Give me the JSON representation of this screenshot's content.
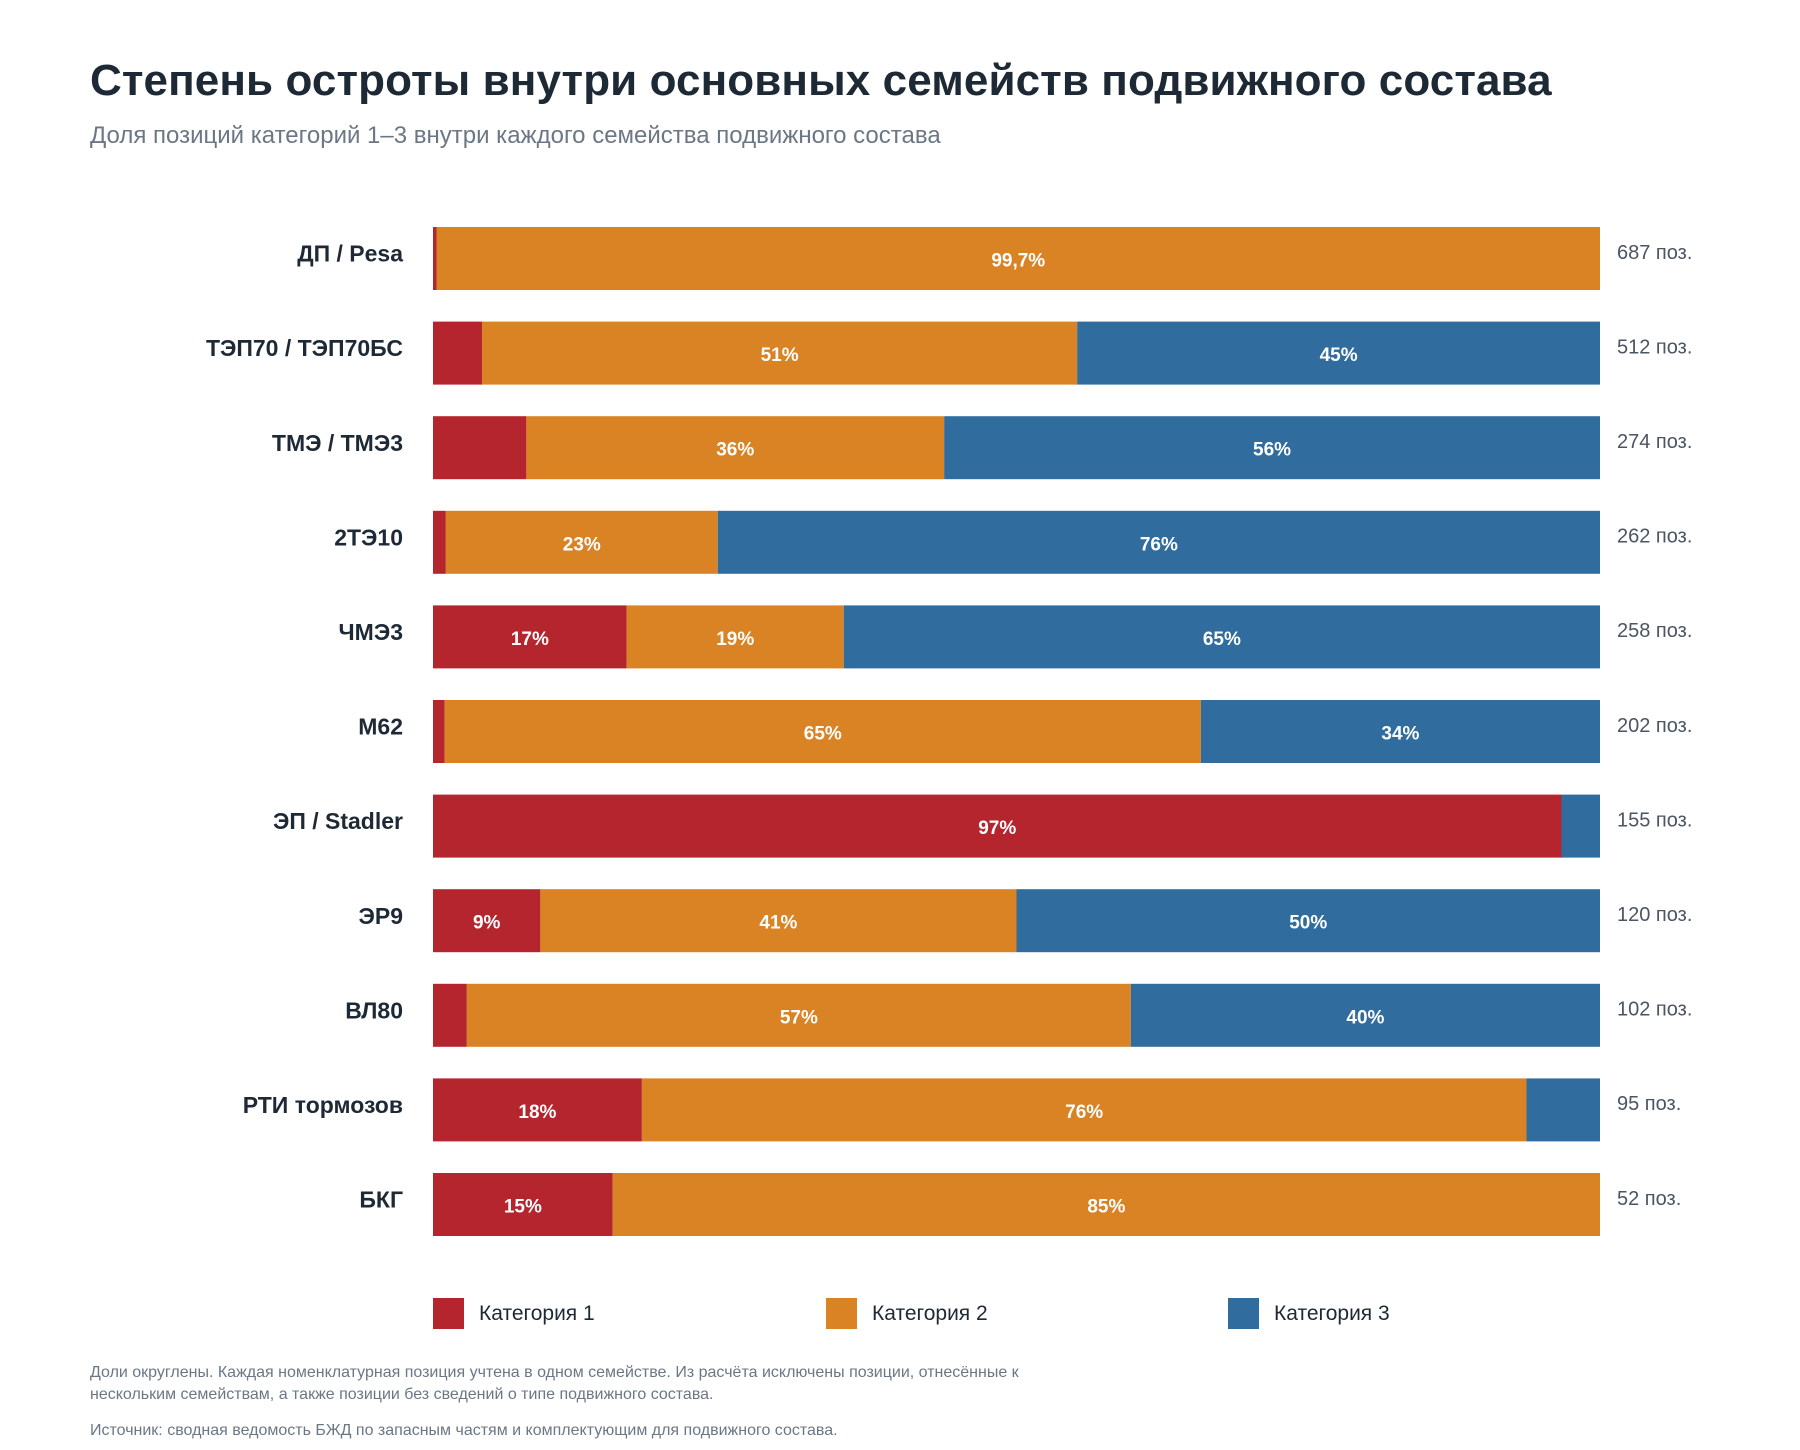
{
  "title": "Степень остроты внутри основных семейств подвижного состава",
  "subtitle": "Доля позиций категорий 1–3 внутри каждого семейства подвижного состава",
  "colors": {
    "cat1": "#b5252e",
    "cat2": "#d98325",
    "cat3": "#306d9e"
  },
  "chart_data": {
    "type": "bar",
    "orientation": "horizontal",
    "stacked": true,
    "normalized": true,
    "xlim": [
      0,
      100
    ],
    "series_names": [
      "Категория 1",
      "Категория 2",
      "Категория 3"
    ],
    "rows": [
      {
        "name": "ДП / Pesa",
        "count_label": "687 поз.",
        "values": [
          0.3,
          99.7,
          0
        ],
        "labels": [
          "",
          "99,7%",
          ""
        ]
      },
      {
        "name": "ТЭП70 / ТЭП70БС",
        "count_label": "512 поз.",
        "values": [
          4.2,
          51,
          44.8
        ],
        "labels": [
          "",
          "51%",
          "45%"
        ]
      },
      {
        "name": "ТМЭ / ТМЭ3",
        "count_label": "274 поз.",
        "values": [
          8,
          35.8,
          56.2
        ],
        "labels": [
          "",
          "36%",
          "56%"
        ]
      },
      {
        "name": "2ТЭ10",
        "count_label": "262 поз.",
        "values": [
          1.1,
          23.3,
          75.6
        ],
        "labels": [
          "",
          "23%",
          "76%"
        ]
      },
      {
        "name": "ЧМЭ3",
        "count_label": "258 поз.",
        "values": [
          16.6,
          18.6,
          64.8
        ],
        "labels": [
          "17%",
          "19%",
          "65%"
        ]
      },
      {
        "name": "М62",
        "count_label": "202 поз.",
        "values": [
          1,
          64.8,
          34.2
        ],
        "labels": [
          "",
          "65%",
          "34%"
        ]
      },
      {
        "name": "ЭП / Stadler",
        "count_label": "155 поз.",
        "values": [
          96.7,
          0,
          3.3
        ],
        "labels": [
          "97%",
          "",
          ""
        ]
      },
      {
        "name": "ЭР9",
        "count_label": "120 поз.",
        "values": [
          9.2,
          40.8,
          50
        ],
        "labels": [
          "9%",
          "41%",
          "50%"
        ]
      },
      {
        "name": "ВЛ80",
        "count_label": "102 поз.",
        "values": [
          2.9,
          56.9,
          40.2
        ],
        "labels": [
          "",
          "57%",
          "40%"
        ]
      },
      {
        "name": "РТИ тормозов",
        "count_label": "95 поз.",
        "values": [
          17.9,
          75.8,
          6.3
        ],
        "labels": [
          "18%",
          "76%",
          ""
        ]
      },
      {
        "name": "БКГ",
        "count_label": "52 поз.",
        "values": [
          15.4,
          84.6,
          0
        ],
        "labels": [
          "15%",
          "85%",
          ""
        ]
      }
    ]
  },
  "legend": [
    {
      "label": "Категория 1",
      "color_key": "cat1"
    },
    {
      "label": "Категория 2",
      "color_key": "cat2"
    },
    {
      "label": "Категория 3",
      "color_key": "cat3"
    }
  ],
  "footnote": "Доли округлены. Каждая номенклатурная позиция учтена в одном семействе. Из расчёта исключены позиции, отнесённые к нескольким семействам, а также позиции без сведений о типе подвижного состава.",
  "source": "Источник: сводная ведомость БЖД по запасным частям и комплектующим для подвижного состава."
}
